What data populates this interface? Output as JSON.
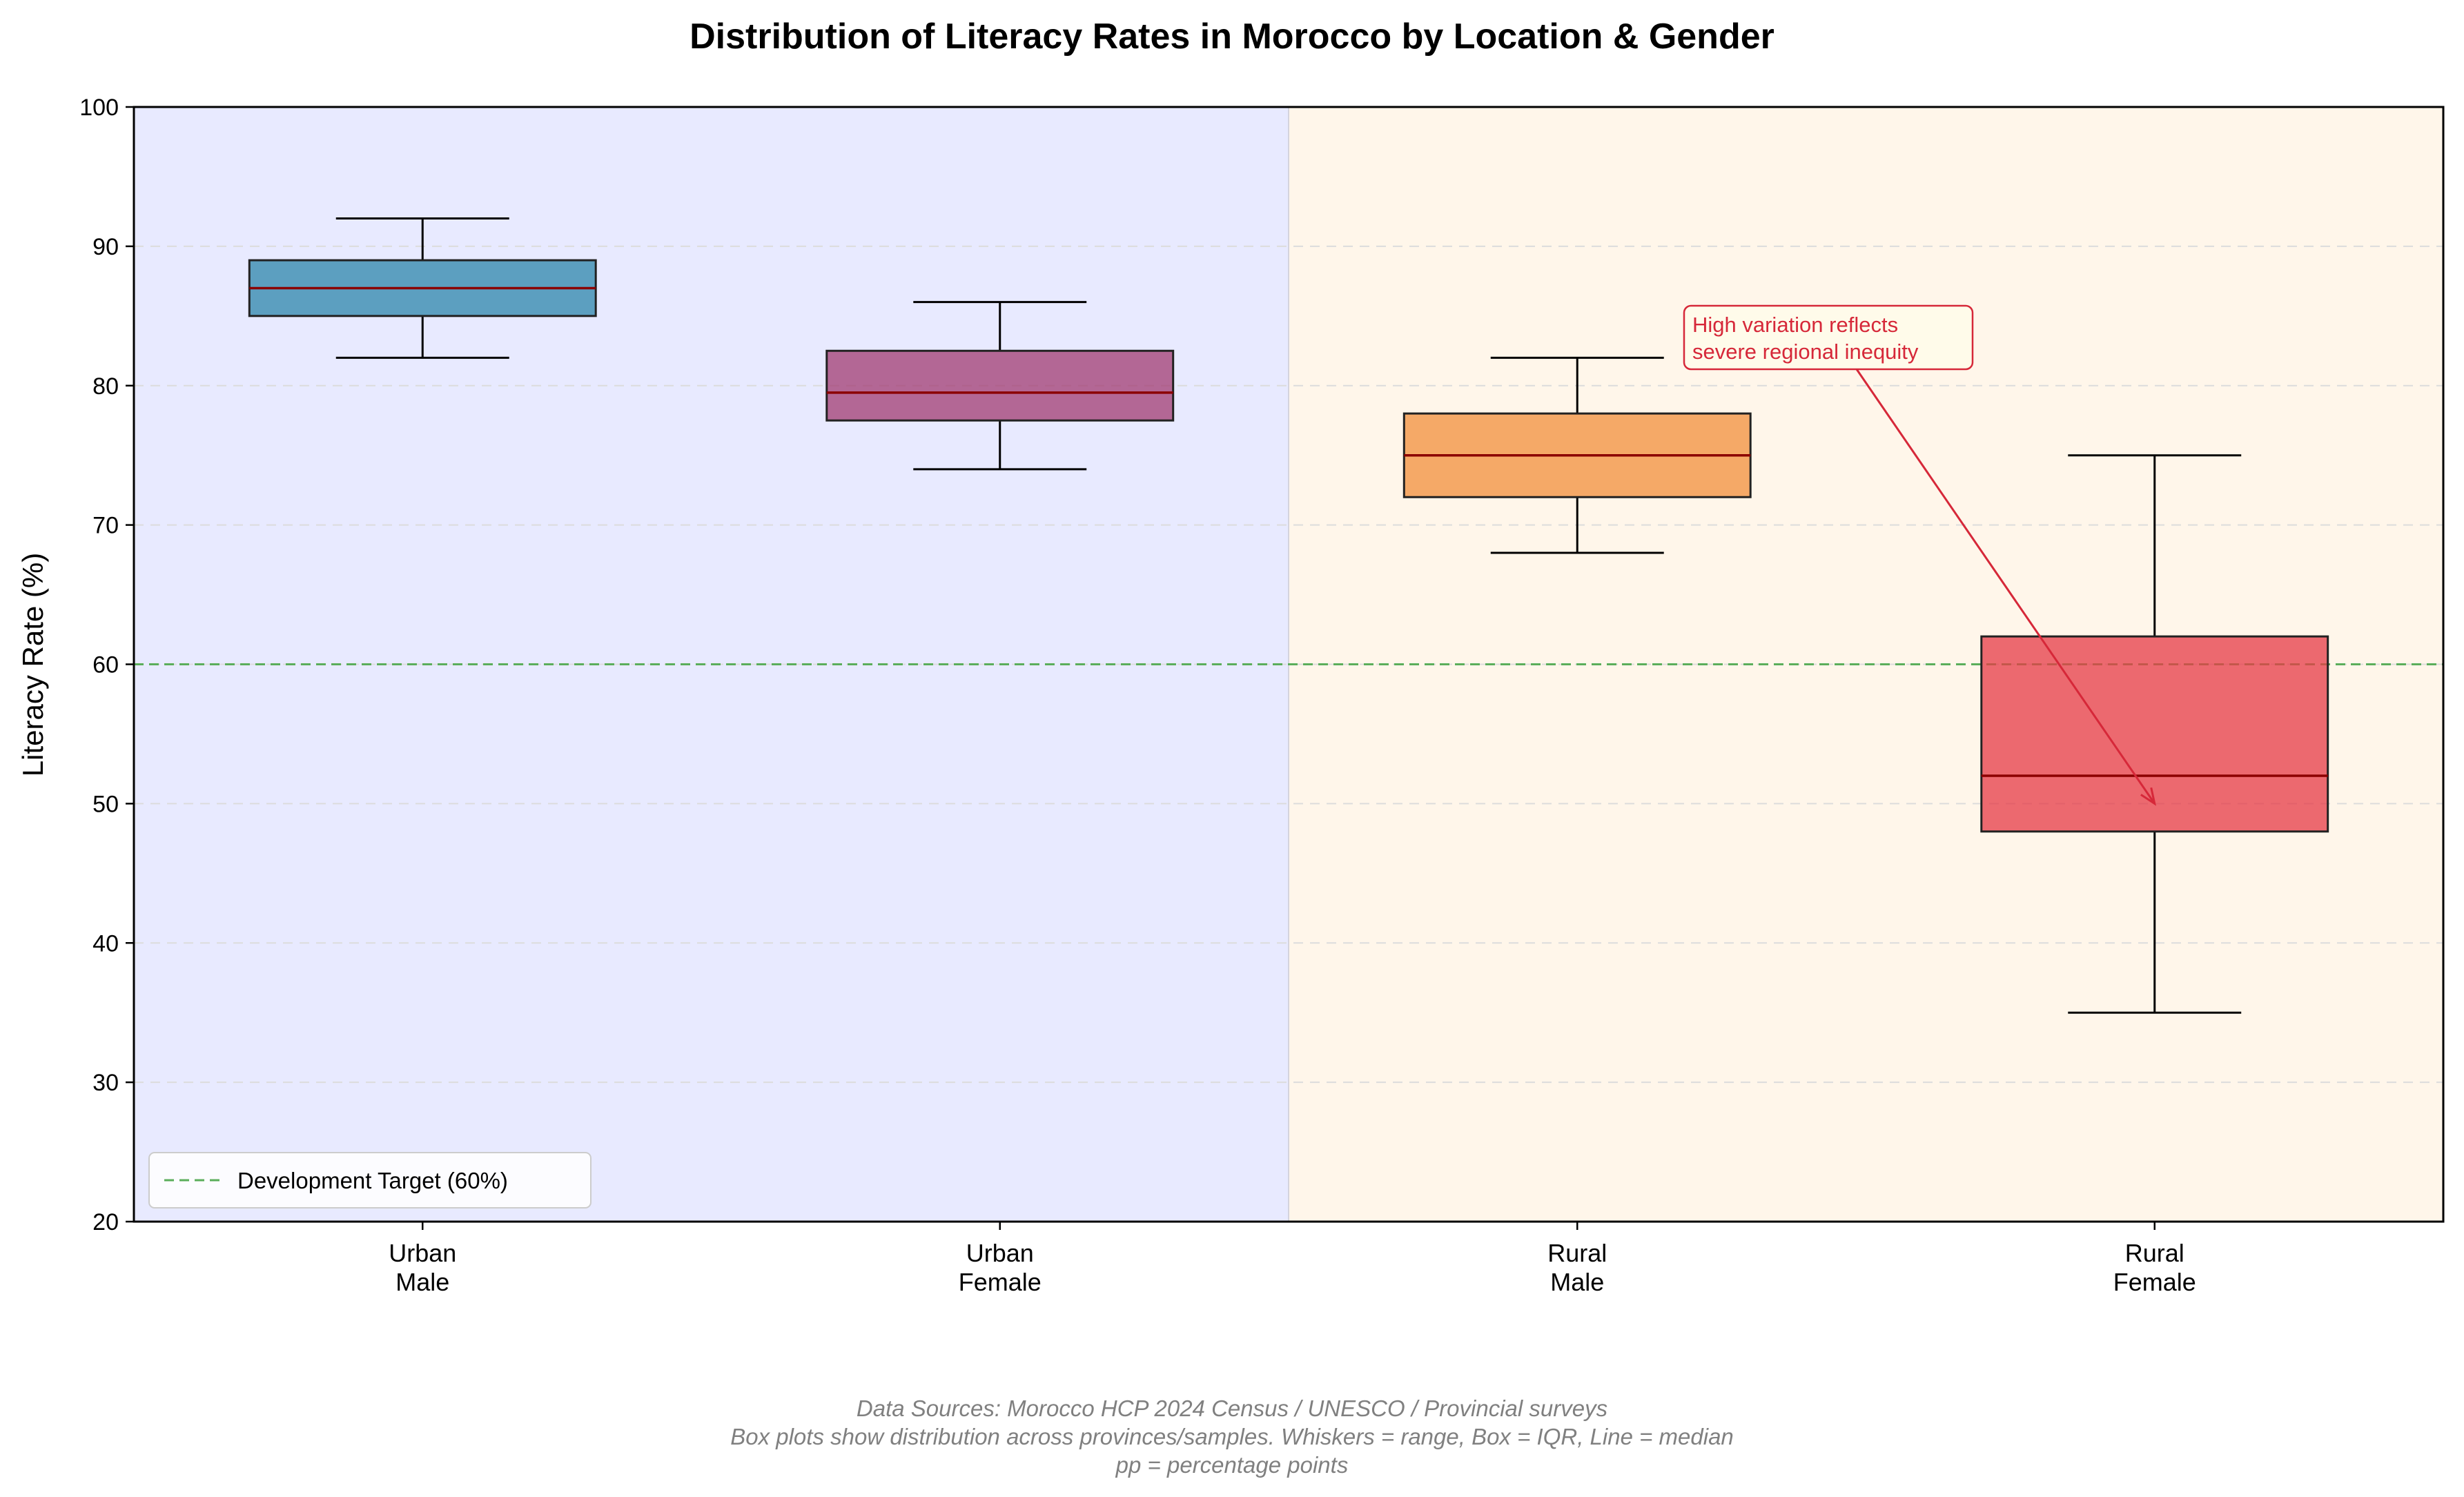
{
  "chart_data": {
    "type": "box",
    "title": "Distribution of Literacy Rates in Morocco by Location & Gender",
    "xlabel": "",
    "ylabel": "Literacy Rate (%)",
    "ylim": [
      20,
      100
    ],
    "yticks": [
      20,
      30,
      40,
      50,
      60,
      70,
      80,
      90,
      100
    ],
    "grid": "horizontal dashed",
    "categories": [
      {
        "line1": "Urban",
        "line2": "Male"
      },
      {
        "line1": "Urban",
        "line2": "Female"
      },
      {
        "line1": "Rural",
        "line2": "Male"
      },
      {
        "line1": "Rural",
        "line2": "Female"
      }
    ],
    "boxes": [
      {
        "min": 82,
        "q1": 85,
        "median": 87,
        "q3": 89,
        "max": 92,
        "color": "#2E86AB"
      },
      {
        "min": 74,
        "q1": 77.5,
        "median": 79.5,
        "q3": 82.5,
        "max": 86,
        "color": "#A23B72"
      },
      {
        "min": 68,
        "q1": 72,
        "median": 75,
        "q3": 78,
        "max": 82,
        "color": "#F18F3B"
      },
      {
        "min": 35,
        "q1": 48,
        "median": 52,
        "q3": 62,
        "max": 75,
        "color": "#E63946"
      }
    ],
    "regions": [
      {
        "name": "Urban",
        "color": "#E8EAFF"
      },
      {
        "name": "Rural",
        "color": "#FFF6EA"
      }
    ],
    "reference_line": {
      "value": 60,
      "label": "Development Target (60%)",
      "color": "#5BAE5B"
    },
    "legend_position": "bottom-left",
    "annotation": {
      "text_line1": "High variation reflects",
      "text_line2": "severe regional inequity",
      "target_category": 3,
      "target_value": 50,
      "color": "#D62839"
    },
    "footer": [
      "Data Sources: Morocco HCP 2024 Census / UNESCO / Provincial surveys",
      "Box plots show distribution across provinces/samples. Whiskers = range, Box = IQR, Line = median",
      "pp = percentage points"
    ],
    "median_color": "#8B0000"
  }
}
